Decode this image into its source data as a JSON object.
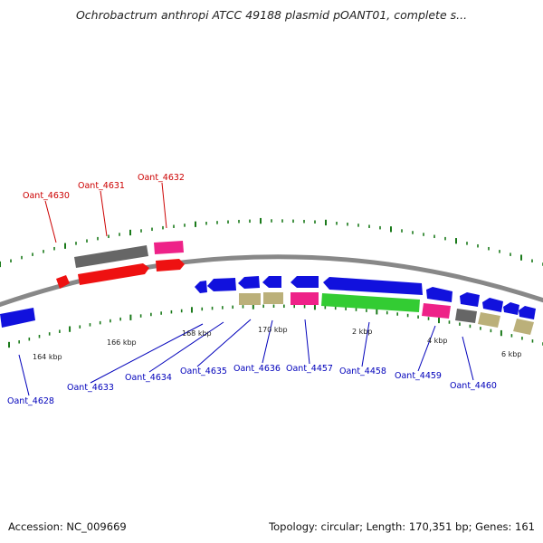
{
  "title": "Ochrobactrum anthropi ATCC 49188 plasmid pOANT01, complete s...",
  "footer": {
    "accession": "Accession: NC_009669",
    "summary": "Topology: circular; Length: 170,351 bp; Genes: 161"
  },
  "colors": {
    "backbone": "#888888",
    "tick": "#1a7a1a",
    "red": "#ee1111",
    "gray": "#666666",
    "pink": "#ee2288",
    "blue": "#1111dd",
    "green": "#33cc33",
    "khaki": "#bbb07a"
  },
  "scale_labels": [
    "164 kbp",
    "166 kbp",
    "168 kbp",
    "170 kbp",
    "2 kbp",
    "4 kbp",
    "6 kbp"
  ],
  "gene_labels": {
    "outer": [
      "Oant_4630",
      "Oant_4631",
      "Oant_4632"
    ],
    "inner": [
      "Oant_4628",
      "Oant_4633",
      "Oant_4634",
      "Oant_4635",
      "Oant_4636",
      "Oant_4457",
      "Oant_4458",
      "Oant_4459",
      "Oant_4460"
    ]
  }
}
